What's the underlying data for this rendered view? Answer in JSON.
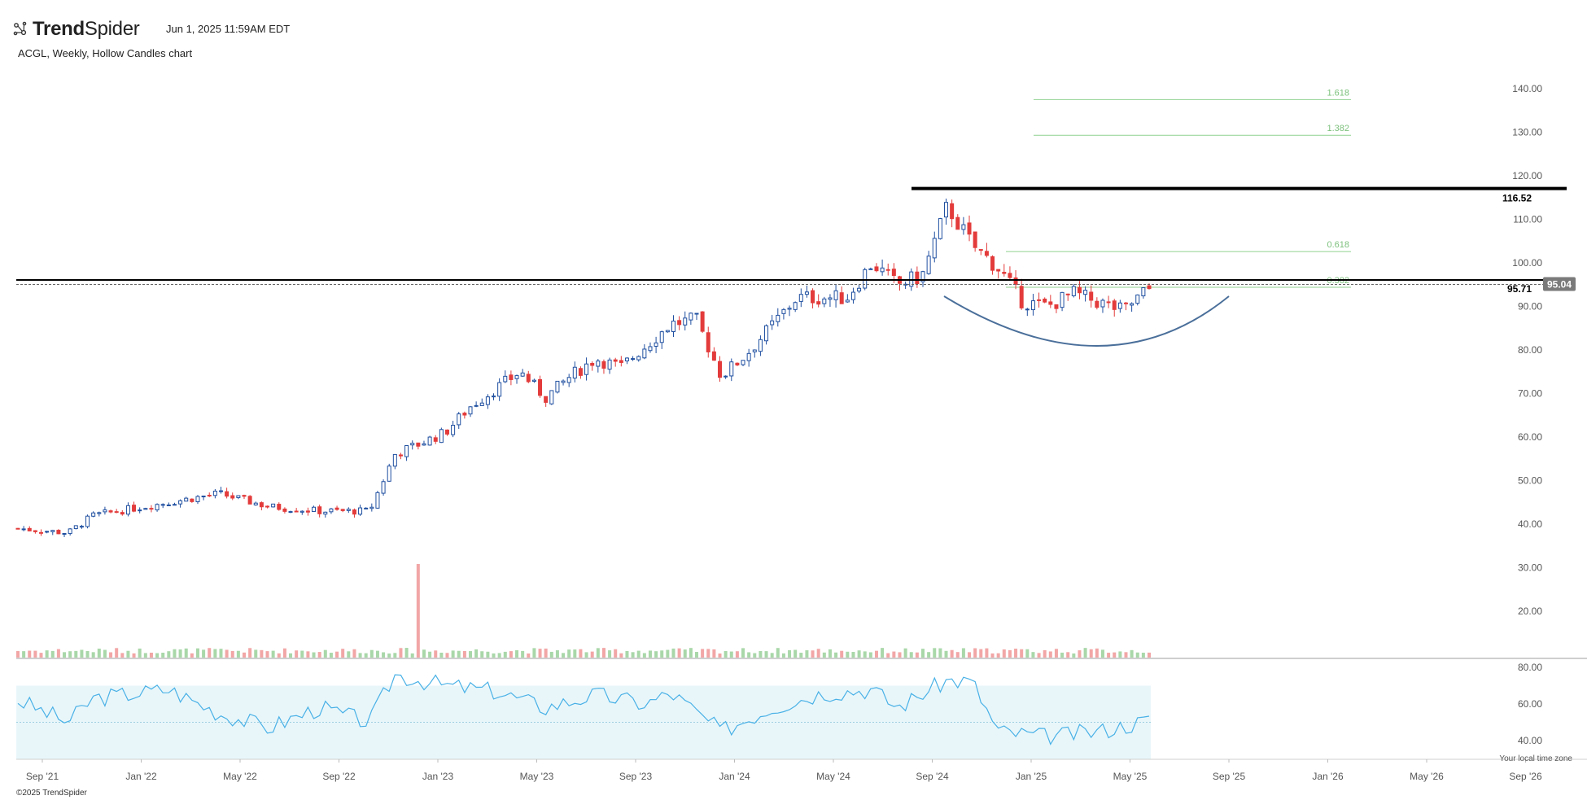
{
  "header": {
    "brand_bold": "Trend",
    "brand_light": "Spider",
    "timestamp": "Jun 1, 2025 11:59AM EDT",
    "subtitle": "ACGL, Weekly, Hollow Candles chart"
  },
  "footer": {
    "copyright": "©2025 TrendSpider",
    "timezone_note": "Your local time zone"
  },
  "colors": {
    "up": "#1f4fa0",
    "down": "#e33b3b",
    "vol_up": "#a9d7a9",
    "vol_down": "#f2a6a6",
    "rsi_line": "#49b1e6",
    "rsi_band": "#e8f6fa",
    "fib": "#8fd08f",
    "arc": "#4a6f9a"
  },
  "chart_data": {
    "type": "candlestick",
    "symbol": "ACGL",
    "interval": "Weekly",
    "price_axis": {
      "ticks": [
        "140.00",
        "130.00",
        "120.00",
        "110.00",
        "100.00",
        "90.00",
        "80.00",
        "70.00",
        "60.00",
        "50.00",
        "40.00",
        "30.00",
        "20.00"
      ],
      "range": [
        16,
        150
      ]
    },
    "time_axis": {
      "labels": [
        "Sep '21",
        "Jan '22",
        "May '22",
        "Sep '22",
        "Jan '23",
        "May '23",
        "Sep '23",
        "Jan '24",
        "May '24",
        "Sep '24",
        "Jan '25",
        "May '25",
        "Sep '25",
        "Jan '26",
        "May '26",
        "Sep '26"
      ]
    },
    "levels": [
      {
        "label": "116.52",
        "value": 116.52,
        "style": "thick"
      },
      {
        "label": "95.71",
        "value": 95.71,
        "style": "solid"
      }
    ],
    "last_price": {
      "label": "95.04",
      "value": 95.04
    },
    "fibonacci": [
      {
        "label": "1.618",
        "value": 137.5
      },
      {
        "label": "1.382",
        "value": 129.3
      },
      {
        "label": "0.618",
        "value": 102.6
      },
      {
        "label": "0.382",
        "value": 94.4
      }
    ],
    "price_anchors": [
      [
        "2021-08",
        39
      ],
      [
        "2021-10",
        38
      ],
      [
        "2021-11",
        42
      ],
      [
        "2022-02",
        45
      ],
      [
        "2022-04",
        47
      ],
      [
        "2022-06",
        44
      ],
      [
        "2022-08",
        43
      ],
      [
        "2022-10",
        43
      ],
      [
        "2022-11",
        56
      ],
      [
        "2023-01",
        61
      ],
      [
        "2023-02",
        67
      ],
      [
        "2023-04",
        75
      ],
      [
        "2023-05",
        69
      ],
      [
        "2023-06",
        74
      ],
      [
        "2023-07",
        78
      ],
      [
        "2023-08",
        76
      ],
      [
        "2023-09",
        81
      ],
      [
        "2023-10",
        86
      ],
      [
        "2023-11",
        87
      ],
      [
        "2023-12",
        74
      ],
      [
        "2024-01",
        79
      ],
      [
        "2024-03",
        92
      ],
      [
        "2024-05",
        92
      ],
      [
        "2024-06",
        100
      ],
      [
        "2024-07",
        95
      ],
      [
        "2024-08",
        97
      ],
      [
        "2024-09",
        113
      ],
      [
        "2024-10",
        104
      ],
      [
        "2024-11",
        99
      ],
      [
        "2024-12",
        91
      ],
      [
        "2025-01",
        90
      ],
      [
        "2025-02",
        93
      ],
      [
        "2025-03",
        91
      ],
      [
        "2025-04",
        89
      ],
      [
        "2025-05",
        94
      ]
    ],
    "volume_spike_month": "2022-12",
    "rsi": {
      "ticks": [
        "80.00",
        "60.00",
        "40.00"
      ],
      "band": [
        30,
        70
      ],
      "midline": 50,
      "anchors": [
        [
          "2021-08",
          62
        ],
        [
          "2021-10",
          50
        ],
        [
          "2021-11",
          63
        ],
        [
          "2022-02",
          68
        ],
        [
          "2022-04",
          55
        ],
        [
          "2022-06",
          47
        ],
        [
          "2022-08",
          58
        ],
        [
          "2022-10",
          50
        ],
        [
          "2022-11",
          76
        ],
        [
          "2023-01",
          70
        ],
        [
          "2023-03",
          67
        ],
        [
          "2023-05",
          58
        ],
        [
          "2023-07",
          65
        ],
        [
          "2023-09",
          60
        ],
        [
          "2023-10",
          66
        ],
        [
          "2023-12",
          45
        ],
        [
          "2024-02",
          58
        ],
        [
          "2024-04",
          66
        ],
        [
          "2024-06",
          68
        ],
        [
          "2024-07",
          58
        ],
        [
          "2024-09",
          73
        ],
        [
          "2024-10",
          72
        ],
        [
          "2024-11",
          45
        ],
        [
          "2025-01",
          42
        ],
        [
          "2025-03",
          45
        ],
        [
          "2025-05",
          51
        ]
      ]
    }
  }
}
